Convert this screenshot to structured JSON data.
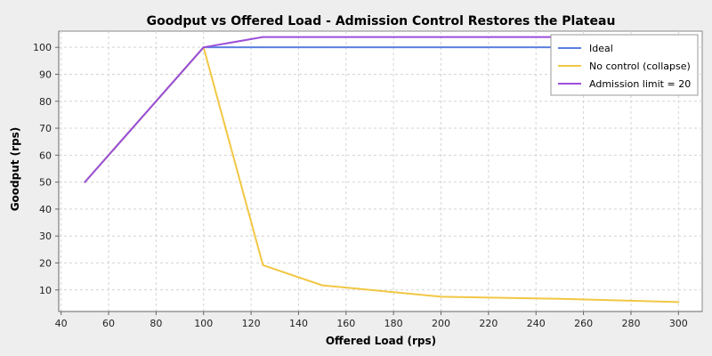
{
  "chart_data": {
    "type": "line",
    "title": "Goodput vs Offered Load - Admission Control Restores the Plateau",
    "xlabel": "Offered Load (rps)",
    "ylabel": "Goodput (rps)",
    "xlim": [
      39,
      310
    ],
    "ylim": [
      2,
      106
    ],
    "x_ticks": [
      40,
      60,
      80,
      100,
      120,
      140,
      160,
      180,
      200,
      220,
      240,
      260,
      280,
      300
    ],
    "y_ticks": [
      10,
      20,
      30,
      40,
      50,
      60,
      70,
      80,
      90,
      100
    ],
    "grid": true,
    "legend_position": "top-right",
    "series": [
      {
        "name": "Ideal",
        "color": "#5a7fe0",
        "x": [
          50,
          100,
          125,
          150,
          200,
          250,
          300
        ],
        "y": [
          50,
          100,
          100,
          100,
          100,
          100,
          100
        ]
      },
      {
        "name": "No control (collapse)",
        "color": "#f2c744",
        "x": [
          50,
          100,
          125,
          150,
          200,
          250,
          300
        ],
        "y": [
          50,
          100,
          19.2,
          11.7,
          7.5,
          6.7,
          5.5
        ]
      },
      {
        "name": "Admission limit = 20",
        "color": "#9b4fd9",
        "x": [
          50,
          100,
          125,
          150,
          200,
          250,
          300
        ],
        "y": [
          50,
          100,
          103.8,
          103.8,
          103.8,
          103.8,
          103.8
        ]
      }
    ]
  }
}
